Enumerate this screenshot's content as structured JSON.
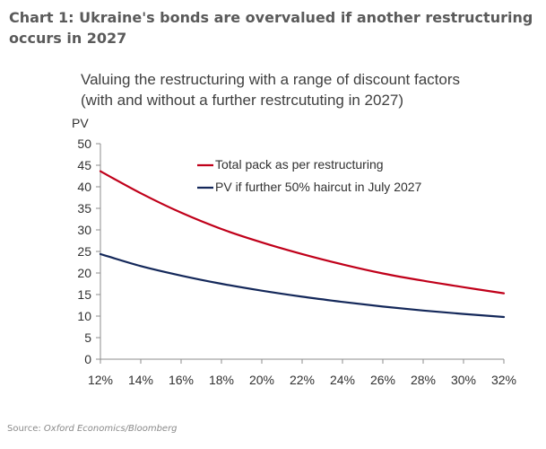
{
  "headline": "Chart 1: Ukraine's bonds are overvalued if another restructuring occurs in 2027",
  "source_label": "Source:",
  "source_name": "Oxford Economics/Bloomberg",
  "chart_data": {
    "type": "line",
    "title_line1": "Valuing the restructuring with a range of discount factors",
    "title_line2": "(with and without a further restrcututing in 2027)",
    "ylabel": "PV",
    "xlabel": "",
    "x": [
      12,
      14,
      16,
      18,
      20,
      22,
      24,
      26,
      28,
      30,
      32
    ],
    "x_tick_labels": [
      "12%",
      "14%",
      "16%",
      "18%",
      "20%",
      "22%",
      "24%",
      "26%",
      "28%",
      "30%",
      "32%"
    ],
    "ylim": [
      0,
      50
    ],
    "y_ticks": [
      0,
      5,
      10,
      15,
      20,
      25,
      30,
      35,
      40,
      45,
      50
    ],
    "grid": false,
    "legend_position": "top-right",
    "series": [
      {
        "name": "Total pack as per restructuring",
        "color": "#c0001a",
        "values": [
          43.6,
          38.5,
          34.0,
          30.2,
          27.1,
          24.4,
          22.0,
          19.9,
          18.2,
          16.7,
          15.3
        ]
      },
      {
        "name": "PV if further 50% haircut in July 2027",
        "color": "#14285a",
        "values": [
          24.4,
          21.6,
          19.4,
          17.5,
          15.9,
          14.5,
          13.3,
          12.2,
          11.3,
          10.5,
          9.8
        ]
      }
    ]
  }
}
